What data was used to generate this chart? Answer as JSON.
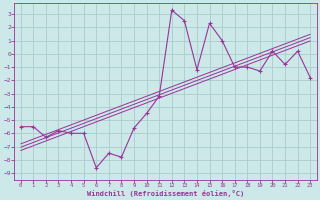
{
  "x_data": [
    0,
    1,
    2,
    3,
    4,
    5,
    6,
    7,
    8,
    9,
    10,
    11,
    12,
    13,
    14,
    15,
    16,
    17,
    18,
    19,
    20,
    21,
    22,
    23
  ],
  "y_data": [
    -5.5,
    -5.5,
    -6.3,
    -5.8,
    -6.0,
    -6.0,
    -8.6,
    -7.5,
    -7.8,
    -5.6,
    -4.5,
    -3.2,
    3.3,
    2.5,
    -1.2,
    2.3,
    1.0,
    -1.0,
    -1.0,
    -1.3,
    0.2,
    -0.8,
    0.2,
    -1.8
  ],
  "line_color": "#993399",
  "bg_color": "#cce8e8",
  "grid_color": "#aacccc",
  "xlabel": "Windchill (Refroidissement éolien,°C)",
  "xlabel_color": "#993399",
  "tick_color": "#993399",
  "spine_color": "#993399",
  "xlim": [
    -0.5,
    23.5
  ],
  "ylim": [
    -9.5,
    3.8
  ],
  "yticks": [
    3,
    2,
    1,
    0,
    -1,
    -2,
    -3,
    -4,
    -5,
    -6,
    -7,
    -8,
    -9
  ],
  "xticks": [
    0,
    1,
    2,
    3,
    4,
    5,
    6,
    7,
    8,
    9,
    10,
    11,
    12,
    13,
    14,
    15,
    16,
    17,
    18,
    19,
    20,
    21,
    22,
    23
  ],
  "regression_offsets": [
    0.25,
    0.0,
    -0.25
  ]
}
